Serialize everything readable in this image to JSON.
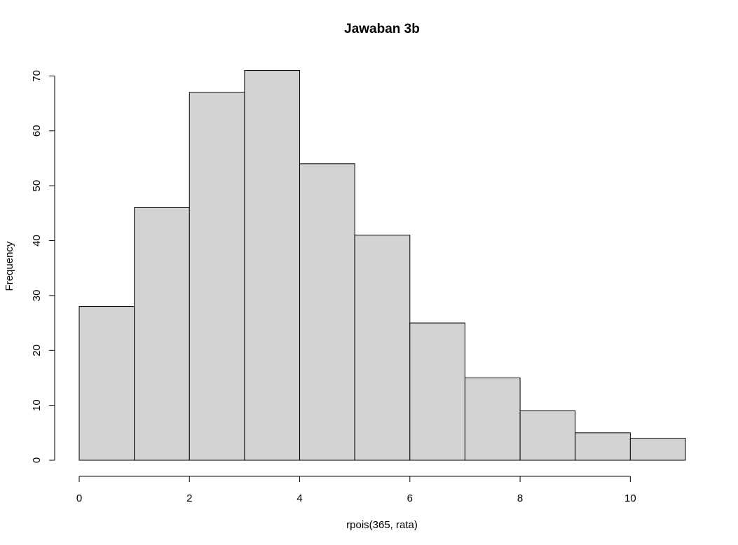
{
  "chart_data": {
    "type": "bar",
    "subtype": "histogram",
    "title": "Jawaban 3b",
    "xlabel": "rpois(365, rata)",
    "ylabel": "Frequency",
    "bins": [
      [
        0,
        1
      ],
      [
        1,
        2
      ],
      [
        2,
        3
      ],
      [
        3,
        4
      ],
      [
        4,
        5
      ],
      [
        5,
        6
      ],
      [
        6,
        7
      ],
      [
        7,
        8
      ],
      [
        8,
        9
      ],
      [
        9,
        10
      ],
      [
        10,
        11
      ]
    ],
    "values": [
      28,
      46,
      67,
      71,
      54,
      41,
      25,
      15,
      9,
      5,
      4
    ],
    "xlim": [
      0,
      11
    ],
    "ylim": [
      0,
      70
    ],
    "xticks": [
      0,
      2,
      4,
      6,
      8,
      10
    ],
    "yticks": [
      0,
      10,
      20,
      30,
      40,
      50,
      60,
      70
    ],
    "grid": false,
    "colors": {
      "bar_fill": "#d3d3d3",
      "bar_stroke": "#000000"
    }
  }
}
